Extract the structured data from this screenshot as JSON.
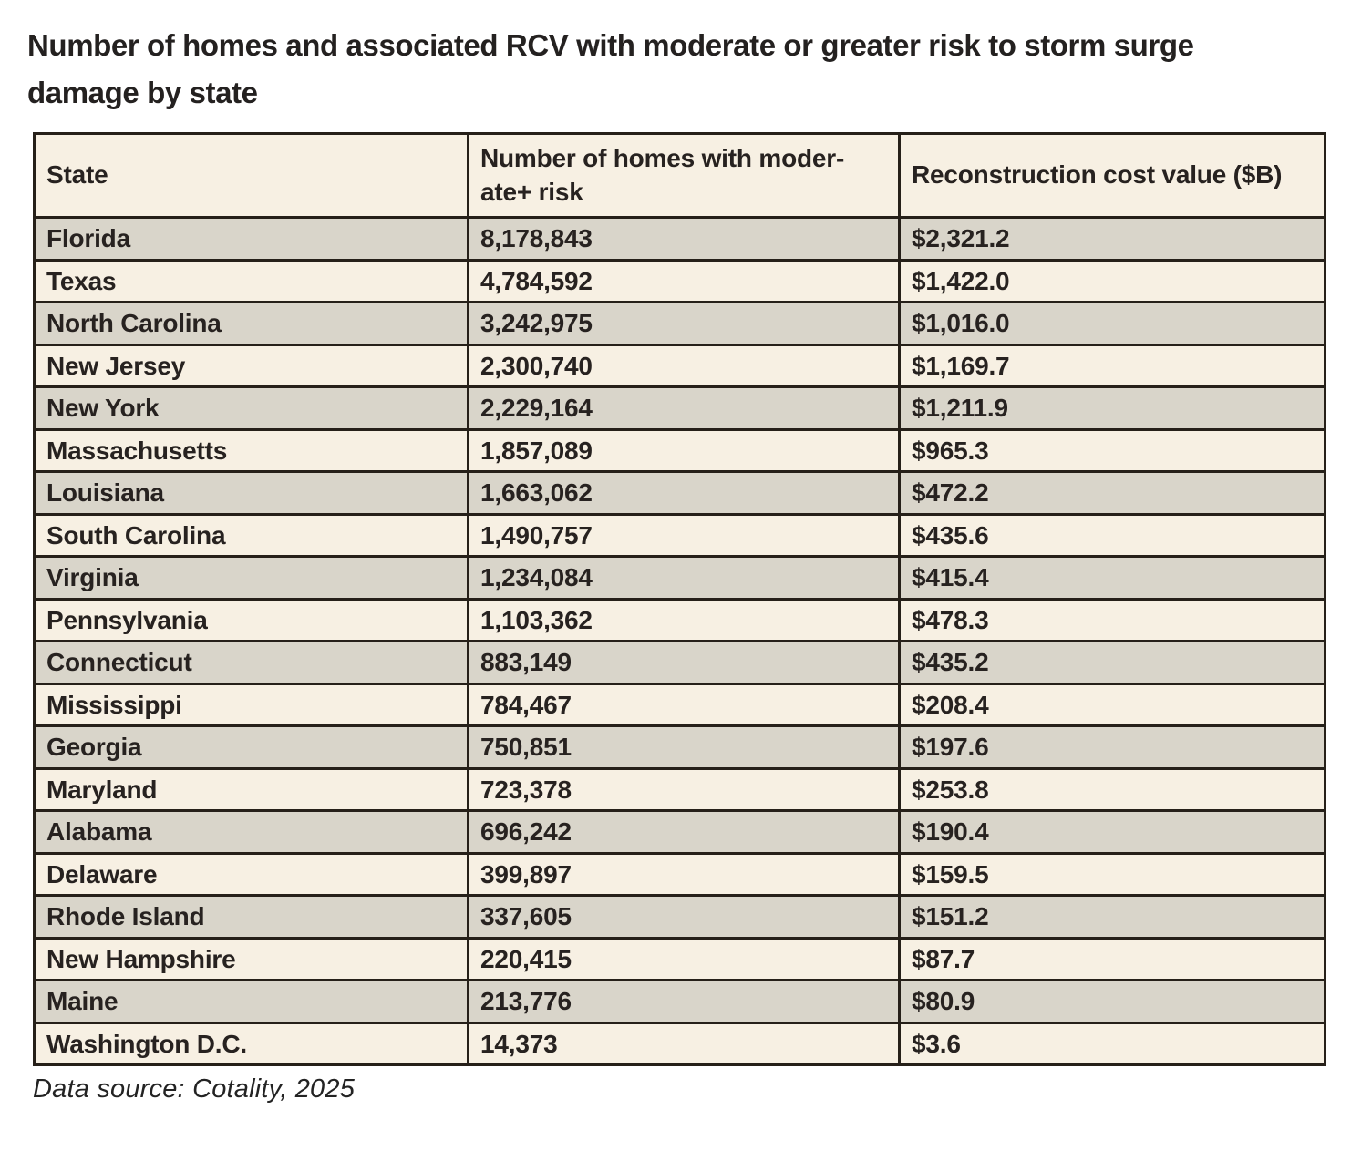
{
  "page": {
    "title_lines": [
      "Number of homes and associated RCV with moderate or greater risk to storm surge",
      "damage by state"
    ],
    "source_note": "Data source: Cotality, 2025"
  },
  "table": {
    "header": {
      "state": "State",
      "homes_line1": "Number of homes with moder-",
      "homes_line2": "ate+ risk",
      "rcv": "Reconstruction cost value ($B)"
    },
    "rows": [
      {
        "state": "Florida",
        "homes": "8,178,843",
        "rcv": "$2,321.2"
      },
      {
        "state": "Texas",
        "homes": "4,784,592",
        "rcv": "$1,422.0"
      },
      {
        "state": "North Carolina",
        "homes": "3,242,975",
        "rcv": "$1,016.0"
      },
      {
        "state": "New Jersey",
        "homes": "2,300,740",
        "rcv": "$1,169.7"
      },
      {
        "state": "New York",
        "homes": "2,229,164",
        "rcv": "$1,211.9"
      },
      {
        "state": "Massachusetts",
        "homes": "1,857,089",
        "rcv": "$965.3"
      },
      {
        "state": "Louisiana",
        "homes": "1,663,062",
        "rcv": "$472.2"
      },
      {
        "state": "South Carolina",
        "homes": "1,490,757",
        "rcv": "$435.6"
      },
      {
        "state": "Virginia",
        "homes": "1,234,084",
        "rcv": "$415.4"
      },
      {
        "state": "Pennsylvania",
        "homes": "1,103,362",
        "rcv": "$478.3"
      },
      {
        "state": "Connecticut",
        "homes": "883,149",
        "rcv": "$435.2"
      },
      {
        "state": "Mississippi",
        "homes": "784,467",
        "rcv": "$208.4"
      },
      {
        "state": "Georgia",
        "homes": "750,851",
        "rcv": "$197.6"
      },
      {
        "state": "Maryland",
        "homes": "723,378",
        "rcv": "$253.8"
      },
      {
        "state": "Alabama",
        "homes": "696,242",
        "rcv": "$190.4"
      },
      {
        "state": "Delaware",
        "homes": "399,897",
        "rcv": "$159.5"
      },
      {
        "state": "Rhode Island",
        "homes": "337,605",
        "rcv": "$151.2"
      },
      {
        "state": "New Hampshire",
        "homes": "220,415",
        "rcv": "$87.7"
      },
      {
        "state": "Maine",
        "homes": "213,776",
        "rcv": "$80.9"
      },
      {
        "state": "Washington D.C.",
        "homes": "14,373",
        "rcv": "$3.6"
      }
    ]
  },
  "colors": {
    "row_alt": "#d9d5ca",
    "row_base": "#f7f0e3",
    "border": "#262019",
    "text": "#272220"
  },
  "chart_data": {
    "type": "table",
    "title": "Number of homes and associated RCV with moderate or greater risk to storm surge damage by state",
    "source": "Data source: Cotality, 2025",
    "columns": [
      "State",
      "Number of homes with moderate+ risk",
      "Reconstruction cost value ($B)"
    ],
    "rows": [
      [
        "Florida",
        8178843,
        2321.2
      ],
      [
        "Texas",
        4784592,
        1422.0
      ],
      [
        "North Carolina",
        3242975,
        1016.0
      ],
      [
        "New Jersey",
        2300740,
        1169.7
      ],
      [
        "New York",
        2229164,
        1211.9
      ],
      [
        "Massachusetts",
        1857089,
        965.3
      ],
      [
        "Louisiana",
        1663062,
        472.2
      ],
      [
        "South Carolina",
        1490757,
        435.6
      ],
      [
        "Virginia",
        1234084,
        415.4
      ],
      [
        "Pennsylvania",
        1103362,
        478.3
      ],
      [
        "Connecticut",
        883149,
        435.2
      ],
      [
        "Mississippi",
        784467,
        208.4
      ],
      [
        "Georgia",
        750851,
        197.6
      ],
      [
        "Maryland",
        723378,
        253.8
      ],
      [
        "Alabama",
        696242,
        190.4
      ],
      [
        "Delaware",
        399897,
        159.5
      ],
      [
        "Rhode Island",
        337605,
        151.2
      ],
      [
        "New Hampshire",
        220415,
        87.7
      ],
      [
        "Maine",
        213776,
        80.9
      ],
      [
        "Washington D.C.",
        14373,
        3.6
      ]
    ]
  }
}
